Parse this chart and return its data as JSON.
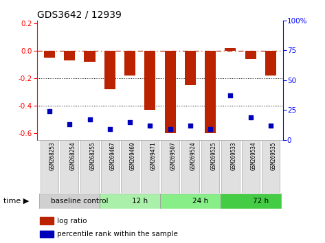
{
  "title": "GDS3642 / 12939",
  "samples": [
    "GSM268253",
    "GSM268254",
    "GSM268255",
    "GSM269467",
    "GSM269469",
    "GSM269471",
    "GSM269507",
    "GSM269524",
    "GSM269525",
    "GSM269533",
    "GSM269534",
    "GSM269535"
  ],
  "log_ratio": [
    -0.05,
    -0.07,
    -0.08,
    -0.28,
    -0.18,
    -0.43,
    -0.6,
    -0.25,
    -0.6,
    0.02,
    -0.06,
    -0.18
  ],
  "percentile_rank": [
    24,
    13,
    17,
    9,
    15,
    12,
    9,
    12,
    9,
    37,
    19,
    12
  ],
  "ylim_left": [
    -0.65,
    0.22
  ],
  "ylim_right": [
    0,
    100
  ],
  "yticks_left": [
    0.2,
    0.0,
    -0.2,
    -0.4,
    -0.6
  ],
  "yticks_right": [
    100,
    75,
    50,
    25,
    0
  ],
  "bar_color": "#bb2200",
  "dot_color": "#0000bb",
  "bar_width": 0.55,
  "groups": [
    {
      "label": "baseline control",
      "start": 0,
      "end": 3,
      "color": "#d0d0d0"
    },
    {
      "label": "12 h",
      "start": 3,
      "end": 6,
      "color": "#aaf0aa"
    },
    {
      "label": "24 h",
      "start": 6,
      "end": 9,
      "color": "#88ee88"
    },
    {
      "label": "72 h",
      "start": 9,
      "end": 12,
      "color": "#44cc44"
    }
  ],
  "legend_bar_label": "log ratio",
  "legend_dot_label": "percentile rank within the sample",
  "background_color": "#ffffff"
}
